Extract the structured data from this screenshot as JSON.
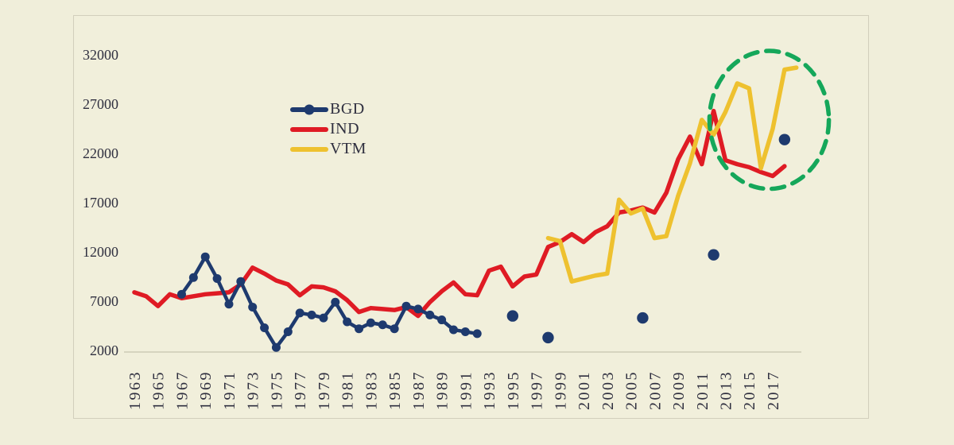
{
  "page": {
    "background_color": "#f0eeda"
  },
  "chart": {
    "frame_border_color": "#d2cfbc",
    "background_color": "#f1efdb",
    "text_color": "#2f2f3f",
    "axis_line_color": "#c6c3ae"
  },
  "legend": {
    "position": "upper-left-inside",
    "items": [
      {
        "label": "BGD",
        "color": "#1e3a6e",
        "marker": "line-with-dot"
      },
      {
        "label": "IND",
        "color": "#df1b24",
        "marker": "line"
      },
      {
        "label": "VTM",
        "color": "#eec12f",
        "marker": "line"
      }
    ]
  },
  "chart_data": {
    "type": "line",
    "title": "",
    "xlabel": "",
    "ylabel": "",
    "grid": false,
    "x_axis": {
      "first_year": 1963,
      "last_year": 2019,
      "tick_labels": [
        "1963",
        "1965",
        "1967",
        "1969",
        "1971",
        "1973",
        "1975",
        "1977",
        "1979",
        "1981",
        "1983",
        "1985",
        "1987",
        "1989",
        "1991",
        "1993",
        "1995",
        "1997",
        "1999",
        "2001",
        "2003",
        "2005",
        "2007",
        "2009",
        "2011",
        "2013",
        "2015",
        "2017"
      ],
      "label_rotation_deg": -90
    },
    "y_axis": {
      "ticks": [
        2000,
        7000,
        12000,
        17000,
        22000,
        27000,
        32000
      ],
      "range": [
        2000,
        33600
      ]
    },
    "series": [
      {
        "name": "BGD",
        "color": "#1e3a6e",
        "style": "line-with-markers",
        "points": [
          [
            1967,
            7700
          ],
          [
            1968,
            9400
          ],
          [
            1969,
            11500
          ],
          [
            1970,
            9300
          ],
          [
            1971,
            6700
          ],
          [
            1972,
            9000
          ],
          [
            1973,
            6400
          ],
          [
            1974,
            4300
          ],
          [
            1975,
            2300
          ],
          [
            1976,
            3900
          ],
          [
            1977,
            5800
          ],
          [
            1978,
            5600
          ],
          [
            1979,
            5300
          ],
          [
            1980,
            6900
          ],
          [
            1981,
            4900
          ],
          [
            1982,
            4200
          ],
          [
            1983,
            4800
          ],
          [
            1984,
            4600
          ],
          [
            1985,
            4200
          ],
          [
            1986,
            6500
          ],
          [
            1987,
            6200
          ],
          [
            1988,
            5600
          ],
          [
            1989,
            5100
          ],
          [
            1990,
            4100
          ],
          [
            1991,
            3900
          ],
          [
            1992,
            3700
          ]
        ],
        "isolated_points": [
          [
            1995,
            5500
          ],
          [
            1998,
            3300
          ],
          [
            2006,
            5300
          ],
          [
            2012,
            11700
          ],
          [
            2018,
            23400
          ]
        ]
      },
      {
        "name": "IND",
        "color": "#df1b24",
        "style": "line",
        "points": [
          [
            1963,
            7900
          ],
          [
            1964,
            7500
          ],
          [
            1965,
            6500
          ],
          [
            1966,
            7700
          ],
          [
            1967,
            7300
          ],
          [
            1968,
            7500
          ],
          [
            1969,
            7700
          ],
          [
            1970,
            7800
          ],
          [
            1971,
            7900
          ],
          [
            1972,
            8700
          ],
          [
            1973,
            10400
          ],
          [
            1974,
            9800
          ],
          [
            1975,
            9100
          ],
          [
            1976,
            8700
          ],
          [
            1977,
            7600
          ],
          [
            1978,
            8500
          ],
          [
            1979,
            8400
          ],
          [
            1980,
            8000
          ],
          [
            1981,
            7100
          ],
          [
            1982,
            5900
          ],
          [
            1983,
            6300
          ],
          [
            1984,
            6200
          ],
          [
            1985,
            6100
          ],
          [
            1986,
            6400
          ],
          [
            1987,
            5500
          ],
          [
            1988,
            6900
          ],
          [
            1989,
            8000
          ],
          [
            1990,
            8900
          ],
          [
            1991,
            7700
          ],
          [
            1992,
            7600
          ],
          [
            1993,
            10100
          ],
          [
            1994,
            10500
          ],
          [
            1995,
            8500
          ],
          [
            1996,
            9500
          ],
          [
            1997,
            9700
          ],
          [
            1998,
            12500
          ],
          [
            1999,
            13000
          ],
          [
            2000,
            13800
          ],
          [
            2001,
            13000
          ],
          [
            2002,
            14000
          ],
          [
            2003,
            14600
          ],
          [
            2004,
            16000
          ],
          [
            2005,
            16200
          ],
          [
            2006,
            16500
          ],
          [
            2007,
            16000
          ],
          [
            2008,
            18000
          ],
          [
            2009,
            21400
          ],
          [
            2010,
            23700
          ],
          [
            2011,
            20900
          ],
          [
            2012,
            26300
          ],
          [
            2013,
            21300
          ],
          [
            2014,
            20900
          ],
          [
            2015,
            20600
          ],
          [
            2016,
            20100
          ],
          [
            2017,
            19700
          ],
          [
            2018,
            20700
          ]
        ],
        "isolated_points": []
      },
      {
        "name": "VTM",
        "color": "#eec12f",
        "style": "line",
        "points": [
          [
            1998,
            13400
          ],
          [
            1999,
            13100
          ],
          [
            2000,
            9000
          ],
          [
            2001,
            9300
          ],
          [
            2002,
            9600
          ],
          [
            2003,
            9800
          ],
          [
            2004,
            17300
          ],
          [
            2005,
            15900
          ],
          [
            2006,
            16400
          ],
          [
            2007,
            13400
          ],
          [
            2008,
            13600
          ],
          [
            2009,
            17700
          ],
          [
            2010,
            21000
          ],
          [
            2011,
            25400
          ],
          [
            2012,
            23900
          ],
          [
            2013,
            26200
          ],
          [
            2014,
            29100
          ],
          [
            2015,
            28600
          ],
          [
            2016,
            20500
          ],
          [
            2017,
            24500
          ],
          [
            2018,
            30500
          ],
          [
            2019,
            30700
          ]
        ],
        "isolated_points": []
      }
    ],
    "annotations": [
      {
        "type": "dashed-ellipse",
        "color": "#15a75a",
        "center_year": 2016.7,
        "center_value": 25400,
        "radius_years": 5.05,
        "radius_value": 7000
      }
    ]
  }
}
